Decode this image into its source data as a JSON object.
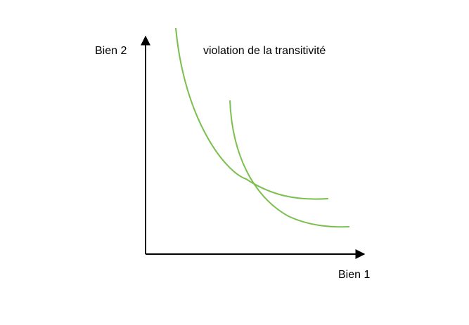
{
  "diagram": {
    "title": "violation de la transitivité",
    "y_axis_label": "Bien 2",
    "x_axis_label": "Bien 1",
    "axis_color": "#000000",
    "curve_color": "#7bbf4f"
  }
}
